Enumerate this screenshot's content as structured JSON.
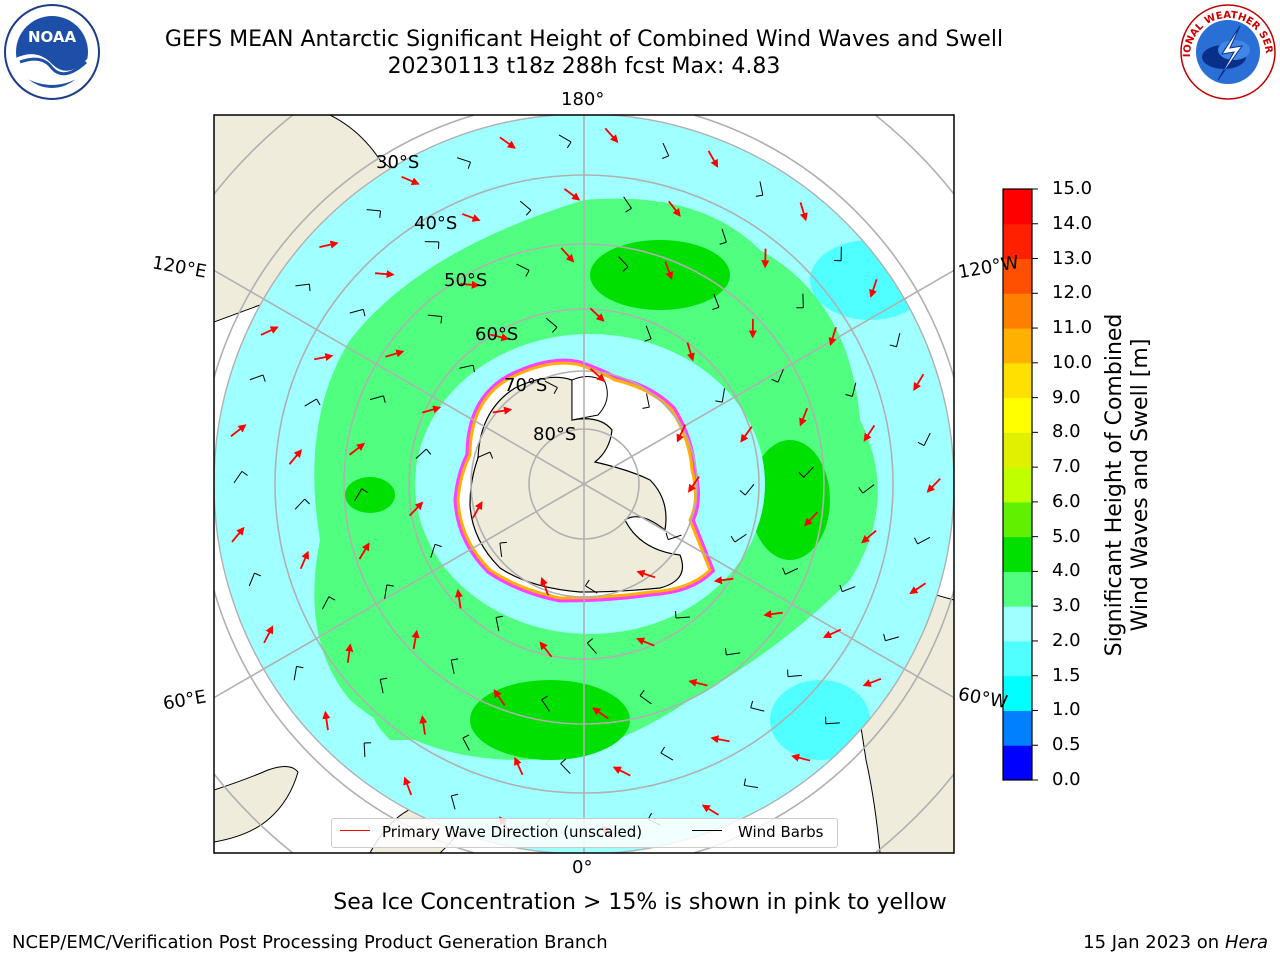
{
  "header": {
    "title_line1": "GEFS MEAN Antarctic Significant Height of Combined Wind Waves and Swell",
    "title_line2": "20230113 t18z 288h fcst   Max: 4.83"
  },
  "logos": {
    "noaa_text": "NOAA",
    "nws_text": "NATIONAL WEATHER SERVICE"
  },
  "map": {
    "projection": "south-polar-stereographic",
    "longitude_labels": [
      "180°",
      "120°E",
      "120°W",
      "60°E",
      "60°W",
      "0°"
    ],
    "latitude_labels": [
      "30°S",
      "40°S",
      "50°S",
      "60°S",
      "70°S",
      "80°S"
    ],
    "ocean_color": "#ffffff",
    "land_color": "#efecdc",
    "grid_color": "#b0b0b0"
  },
  "colorbar": {
    "label": "Significant Height of Combined Wind Waves and Swell [m]",
    "label_line1": "Significant Height of Combined",
    "label_line2": "Wind Waves and Swell [m]",
    "tick_labels": [
      "0.0",
      "0.5",
      "1.0",
      "1.5",
      "2.0",
      "3.0",
      "4.0",
      "5.0",
      "6.0",
      "7.0",
      "8.0",
      "9.0",
      "10.0",
      "11.0",
      "12.0",
      "13.0",
      "14.0",
      "15.0"
    ],
    "colors": [
      "#0000ff",
      "#0080ff",
      "#00ffff",
      "#50ffff",
      "#a0ffff",
      "#50ff80",
      "#00e000",
      "#60f000",
      "#c0ff00",
      "#e0f000",
      "#ffff00",
      "#ffe000",
      "#ffb000",
      "#ff8000",
      "#ff5000",
      "#ff2000",
      "#ff0000"
    ]
  },
  "legend": {
    "wave_label": "Primary Wave Direction (unscaled)",
    "barb_label": "Wind Barbs",
    "wave_color": "#ff0000",
    "barb_color": "#000000"
  },
  "notes": {
    "sea_ice": "Sea Ice Concentration > 15% is shown in pink to yellow"
  },
  "footer": {
    "left": "NCEP/EMC/Verification Post Processing Product Generation Branch",
    "right_date": "15 Jan 2023 on ",
    "right_host": "Hera"
  }
}
